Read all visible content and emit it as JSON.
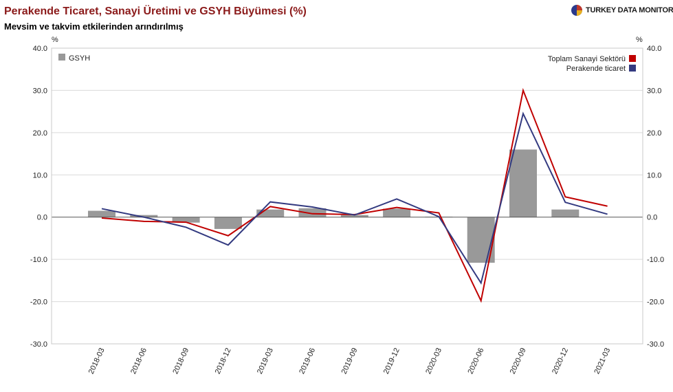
{
  "header": {
    "title": "Perakende Ticaret, Sanayi Üretimi ve GSYH Büyümesi (%)",
    "subtitle": "Mevsim ve takvim etkilerinden arındırılmış",
    "logo_text": "TURKEY DATA MONITOR"
  },
  "colors": {
    "bar": "#999999",
    "industry": "#c00000",
    "retail": "#333a80",
    "grid": "#d9d9d9",
    "title": "#8b1a1a"
  },
  "chart_data": {
    "type": "bar+line",
    "categories": [
      "2018-03",
      "2018-06",
      "2018-09",
      "2018-12",
      "2019-03",
      "2019-06",
      "2019-09",
      "2019-12",
      "2020-03",
      "2020-06",
      "2020-09",
      "2020-12",
      "2021-03"
    ],
    "left_unit": "%",
    "right_unit": "%",
    "ylim": [
      -30,
      40
    ],
    "yticks": [
      "40.0",
      "30.0",
      "20.0",
      "10.0",
      "0.0",
      "-10.0",
      "-20.0",
      "-30.0"
    ],
    "grid": true,
    "legend_left": "top-left",
    "legend_right": "top-right",
    "series": [
      {
        "name": "GSYH",
        "kind": "bar",
        "values": [
          1.5,
          0.5,
          -1.3,
          -2.8,
          1.8,
          2.1,
          0.5,
          2.0,
          0.1,
          -10.8,
          16.0,
          1.8,
          null
        ]
      },
      {
        "name": "Toplam Sanayi Sektörü",
        "kind": "line",
        "values": [
          -0.2,
          -1.0,
          -1.2,
          -4.4,
          2.5,
          0.8,
          0.6,
          2.3,
          1.0,
          -19.8,
          30.0,
          4.8,
          2.6
        ]
      },
      {
        "name": "Perakende ticaret",
        "kind": "line",
        "values": [
          2.0,
          0.0,
          -2.4,
          -6.6,
          3.6,
          2.4,
          0.5,
          4.3,
          0.1,
          -15.6,
          24.5,
          3.5,
          0.7
        ]
      }
    ]
  }
}
